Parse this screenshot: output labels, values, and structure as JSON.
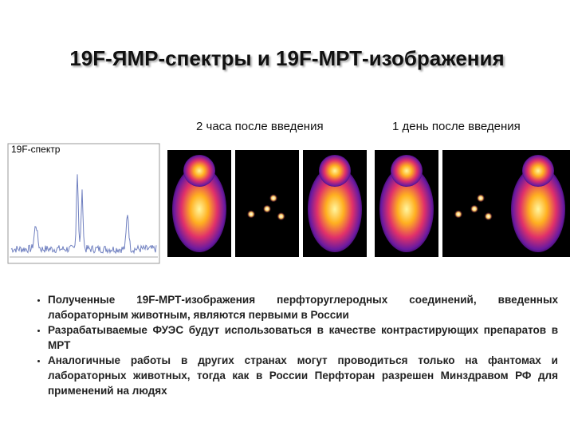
{
  "slide": {
    "title": "19F-ЯМР-спектры и 19F-МРТ-изображения",
    "captions": [
      "2 часа после введения",
      "1 день после введения"
    ],
    "spectrum_label": "19F-спектр",
    "bullets": [
      "Полученные 19F-МРТ-изображения перфторуглеродных соединений, введенных лабораторным животным, являются первыми в России",
      "Разрабатываемые ФУЭС будут использоваться в качестве контрастирующих препаратов в МРТ",
      "Аналогичные работы в других странах могут проводиться только на фантомах и лабораторных животных, тогда как в России Перфторан разрешен Минздравом РФ для применений на людях"
    ]
  }
}
